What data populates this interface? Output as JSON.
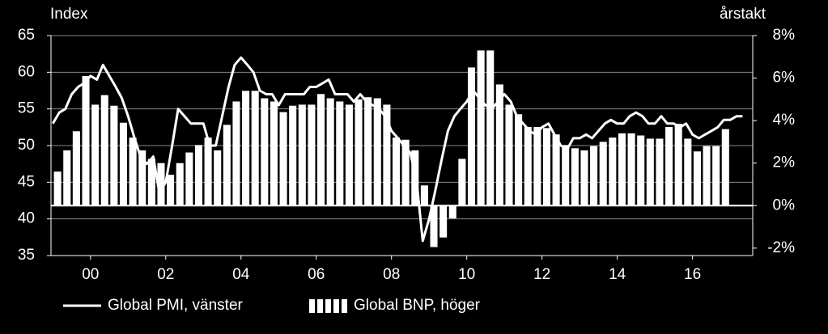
{
  "chart_data": {
    "type": "bar-line",
    "ylabel": "Index",
    "y2label": "årstakt",
    "xlim": [
      1998.95,
      2017.6
    ],
    "xticks": [
      {
        "value": 2000,
        "label": "00"
      },
      {
        "value": 2002,
        "label": "02"
      },
      {
        "value": 2004,
        "label": "04"
      },
      {
        "value": 2006,
        "label": "06"
      },
      {
        "value": 2008,
        "label": "08"
      },
      {
        "value": 2010,
        "label": "10"
      },
      {
        "value": 2012,
        "label": "12"
      },
      {
        "value": 2014,
        "label": "14"
      },
      {
        "value": 2016,
        "label": "16"
      }
    ],
    "ylim": [
      35,
      65
    ],
    "yticks": [
      35,
      40,
      45,
      50,
      55,
      60,
      65
    ],
    "y2lim": [
      -2.35,
      8
    ],
    "y2ticks": [
      {
        "value": -2,
        "label": "-2%"
      },
      {
        "value": 0,
        "label": "0%"
      },
      {
        "value": 2,
        "label": "2%"
      },
      {
        "value": 4,
        "label": "4%"
      },
      {
        "value": 6,
        "label": "6%"
      },
      {
        "value": 8,
        "label": "8%"
      }
    ],
    "grid": true,
    "series": [
      {
        "name": "Global PMI, vänster",
        "type": "line",
        "color": "#ffffff",
        "x": [
          1999,
          1999.17,
          1999.33,
          1999.5,
          1999.67,
          1999.83,
          2000,
          2000.17,
          2000.33,
          2000.5,
          2000.67,
          2000.83,
          2001,
          2001.17,
          2001.33,
          2001.5,
          2001.67,
          2001.83,
          2002,
          2002.17,
          2002.33,
          2002.5,
          2002.67,
          2002.83,
          2003,
          2003.17,
          2003.33,
          2003.5,
          2003.67,
          2003.83,
          2004,
          2004.17,
          2004.33,
          2004.5,
          2004.67,
          2004.83,
          2005,
          2005.17,
          2005.33,
          2005.5,
          2005.67,
          2005.83,
          2006,
          2006.17,
          2006.33,
          2006.5,
          2006.67,
          2006.83,
          2007,
          2007.17,
          2007.33,
          2007.5,
          2007.67,
          2007.83,
          2008,
          2008.17,
          2008.33,
          2008.5,
          2008.67,
          2008.83,
          2009,
          2009.17,
          2009.33,
          2009.5,
          2009.67,
          2009.83,
          2010,
          2010.17,
          2010.33,
          2010.5,
          2010.67,
          2010.83,
          2011,
          2011.17,
          2011.33,
          2011.5,
          2011.67,
          2011.83,
          2012,
          2012.17,
          2012.33,
          2012.5,
          2012.67,
          2012.83,
          2013,
          2013.17,
          2013.33,
          2013.5,
          2013.67,
          2013.83,
          2014,
          2014.17,
          2014.33,
          2014.5,
          2014.67,
          2014.83,
          2015,
          2015.17,
          2015.33,
          2015.5,
          2015.67,
          2015.83,
          2016,
          2016.17,
          2016.33,
          2016.5,
          2016.67,
          2016.83,
          2017,
          2017.17,
          2017.33
        ],
        "values": [
          53,
          54.5,
          55,
          57,
          58,
          58.5,
          59.5,
          59,
          61,
          59.5,
          58,
          56.5,
          54,
          51,
          48.5,
          47.5,
          48.5,
          43.5,
          45,
          50,
          55,
          54,
          53,
          53,
          53,
          50,
          50,
          54,
          58,
          61,
          62,
          61,
          60,
          57.5,
          57,
          57,
          55.5,
          57,
          57,
          57,
          57,
          58,
          58,
          58.5,
          59,
          57,
          57,
          57,
          56,
          57,
          56,
          55.5,
          55,
          54,
          52,
          51,
          50,
          49,
          45,
          37,
          40,
          44,
          48,
          52,
          54,
          55,
          56,
          57.5,
          56.5,
          55.5,
          55,
          56,
          57,
          56,
          54,
          53,
          52,
          51.5,
          52.5,
          53,
          51.5,
          50,
          49.5,
          51,
          51,
          51.5,
          51,
          52,
          53,
          53.5,
          53,
          53,
          54,
          54.5,
          54,
          53,
          53,
          54,
          53,
          53,
          52.5,
          53,
          51.5,
          51,
          51.5,
          52,
          52.5,
          53.5,
          53.5,
          54,
          54
        ]
      },
      {
        "name": "Global BNP, höger",
        "type": "bar",
        "axis": "y2",
        "color": "#ffffff",
        "x": [
          1999,
          1999.25,
          1999.5,
          1999.75,
          2000,
          2000.25,
          2000.5,
          2000.75,
          2001,
          2001.25,
          2001.5,
          2001.75,
          2002,
          2002.25,
          2002.5,
          2002.75,
          2003,
          2003.25,
          2003.5,
          2003.75,
          2004,
          2004.25,
          2004.5,
          2004.75,
          2005,
          2005.25,
          2005.5,
          2005.75,
          2006,
          2006.25,
          2006.5,
          2006.75,
          2007,
          2007.25,
          2007.5,
          2007.75,
          2008,
          2008.25,
          2008.5,
          2008.75,
          2009,
          2009.25,
          2009.5,
          2009.75,
          2010,
          2010.25,
          2010.5,
          2010.75,
          2011,
          2011.25,
          2011.5,
          2011.75,
          2012,
          2012.25,
          2012.5,
          2012.75,
          2013,
          2013.25,
          2013.5,
          2013.75,
          2014,
          2014.25,
          2014.5,
          2014.75,
          2015,
          2015.25,
          2015.5,
          2015.75,
          2016,
          2016.25,
          2016.5,
          2016.75
        ],
        "values": [
          1.6,
          2.6,
          3.5,
          6.1,
          4.75,
          5.2,
          4.7,
          3.9,
          3.2,
          2.6,
          2.2,
          2.0,
          1.45,
          2.0,
          2.5,
          2.85,
          3.2,
          2.6,
          3.8,
          4.9,
          5.4,
          5.4,
          5.05,
          4.9,
          4.4,
          4.7,
          4.75,
          4.75,
          5.25,
          5.05,
          4.9,
          4.75,
          5.0,
          5.1,
          5.05,
          4.75,
          3.2,
          3.1,
          2.6,
          0.95,
          -1.95,
          -1.5,
          -0.6,
          2.2,
          6.5,
          7.3,
          7.3,
          5.7,
          4.75,
          4.3,
          3.7,
          3.7,
          3.65,
          3.35,
          2.85,
          2.7,
          2.6,
          2.8,
          3.0,
          3.2,
          3.4,
          3.4,
          3.3,
          3.15,
          3.15,
          3.7,
          3.85,
          3.15,
          2.55,
          2.8,
          2.8,
          3.6
        ]
      }
    ]
  }
}
